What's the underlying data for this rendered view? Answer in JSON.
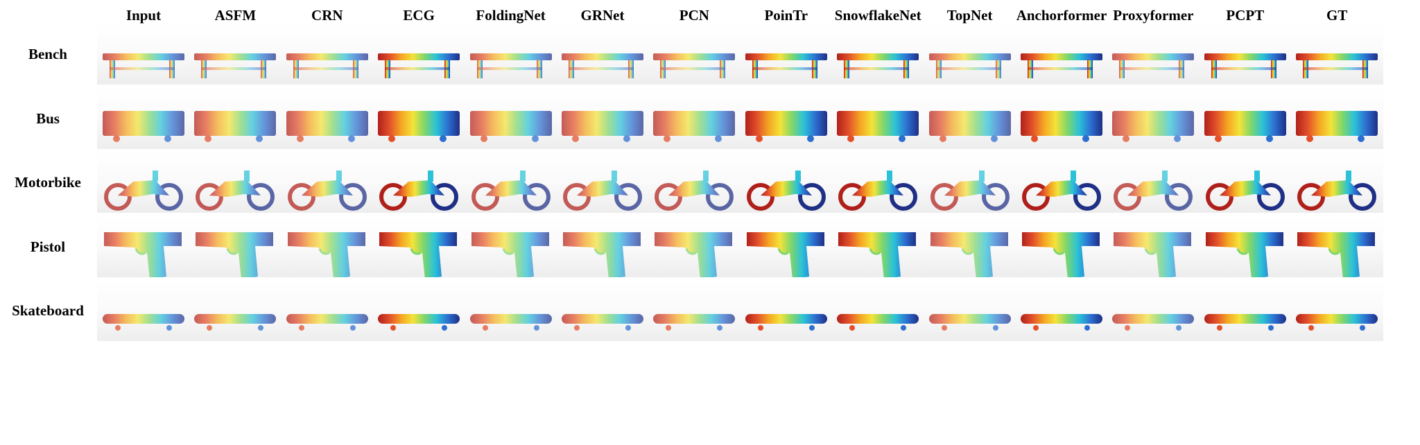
{
  "figure": {
    "columns": [
      "Input",
      "ASFM",
      "CRN",
      "ECG",
      "FoldingNet",
      "GRNet",
      "PCN",
      "PoinTr",
      "SnowflakeNet",
      "TopNet",
      "Anchorformer",
      "Proxyformer",
      "PCPT",
      "GT"
    ],
    "rows": [
      {
        "label": "Bench",
        "shape": "bench"
      },
      {
        "label": "Bus",
        "shape": "bus"
      },
      {
        "label": "Motorbike",
        "shape": "motorbike"
      },
      {
        "label": "Pistol",
        "shape": "pistol"
      },
      {
        "label": "Skateboard",
        "shape": "skateboard"
      }
    ],
    "colormap": [
      "#b0201b",
      "#e2502a",
      "#f5a623",
      "#f4e33a",
      "#7fd66b",
      "#2bc2d8",
      "#2c6fd1",
      "#1f2f86"
    ]
  }
}
